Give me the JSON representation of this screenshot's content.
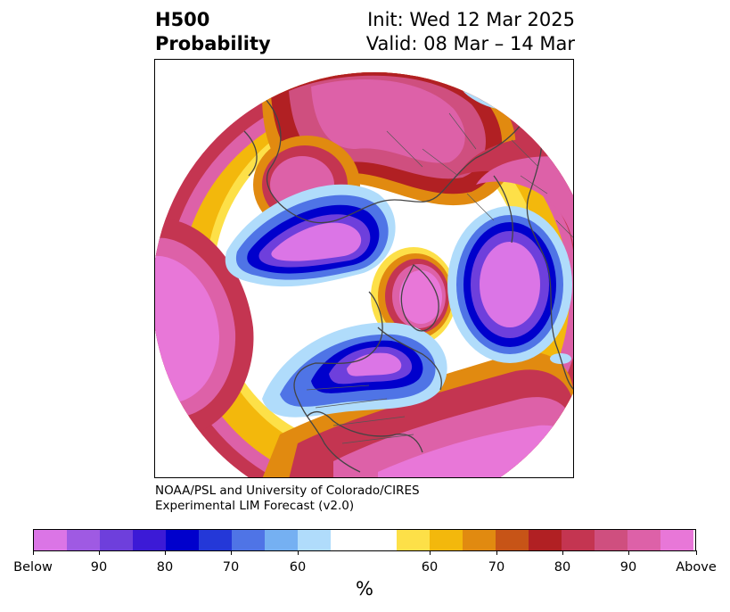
{
  "title": {
    "left_line1": "H500",
    "left_line2": "Probability",
    "init": "Init: Wed 12 Mar 2025",
    "valid": "Valid: 08 Mar – 14 Mar"
  },
  "credit": {
    "line1": "NOAA/PSL and University of Colorado/CIRES",
    "line2": "Experimental LIM Forecast (v2.0)"
  },
  "colorbar": {
    "colors": [
      "#db75e6",
      "#9f5ae3",
      "#6e3fdc",
      "#3c1ad6",
      "#0000cc",
      "#2438d8",
      "#4f74e6",
      "#75b0f2",
      "#b0dcfb",
      "#ffffff",
      "#ffffff",
      "#fde048",
      "#f3b80c",
      "#e18a10",
      "#c75417",
      "#b12023",
      "#c43551",
      "#cf4f7f",
      "#dd61a8",
      "#e877d8"
    ],
    "ticks": [
      "Below",
      "90",
      "80",
      "70",
      "60",
      "60",
      "70",
      "80",
      "90",
      "Above"
    ],
    "unit": "%"
  },
  "map": {
    "projection": "north-polar-stereographic",
    "layers": "filled-probability-contours with coastlines and borders"
  }
}
